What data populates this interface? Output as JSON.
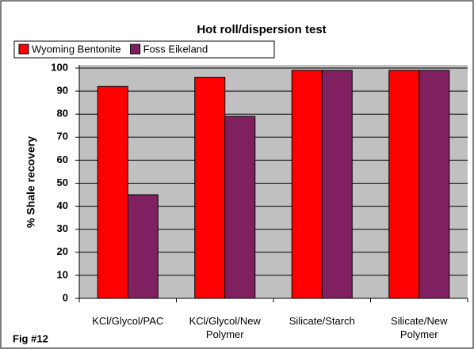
{
  "chart_data": {
    "type": "bar",
    "title": "Hot roll/dispersion test",
    "ylabel": "% Shale recovery",
    "footnote": "Fig #12",
    "categories": [
      "KCl/Glycol/PAC",
      "KCl/Glycol/New Polymer",
      "Silicate/Starch",
      "Silicate/New Polymer"
    ],
    "series": [
      {
        "name": "Wyoming Bentonite",
        "color": "#ff0000",
        "values": [
          92,
          96,
          99,
          99
        ]
      },
      {
        "name": "Foss Eikeland",
        "color": "#802060",
        "values": [
          45,
          79,
          99,
          99
        ]
      }
    ],
    "ylim": [
      0,
      100
    ],
    "yticks": [
      0,
      10,
      20,
      30,
      40,
      50,
      60,
      70,
      80,
      90,
      100
    ],
    "grid": true
  }
}
